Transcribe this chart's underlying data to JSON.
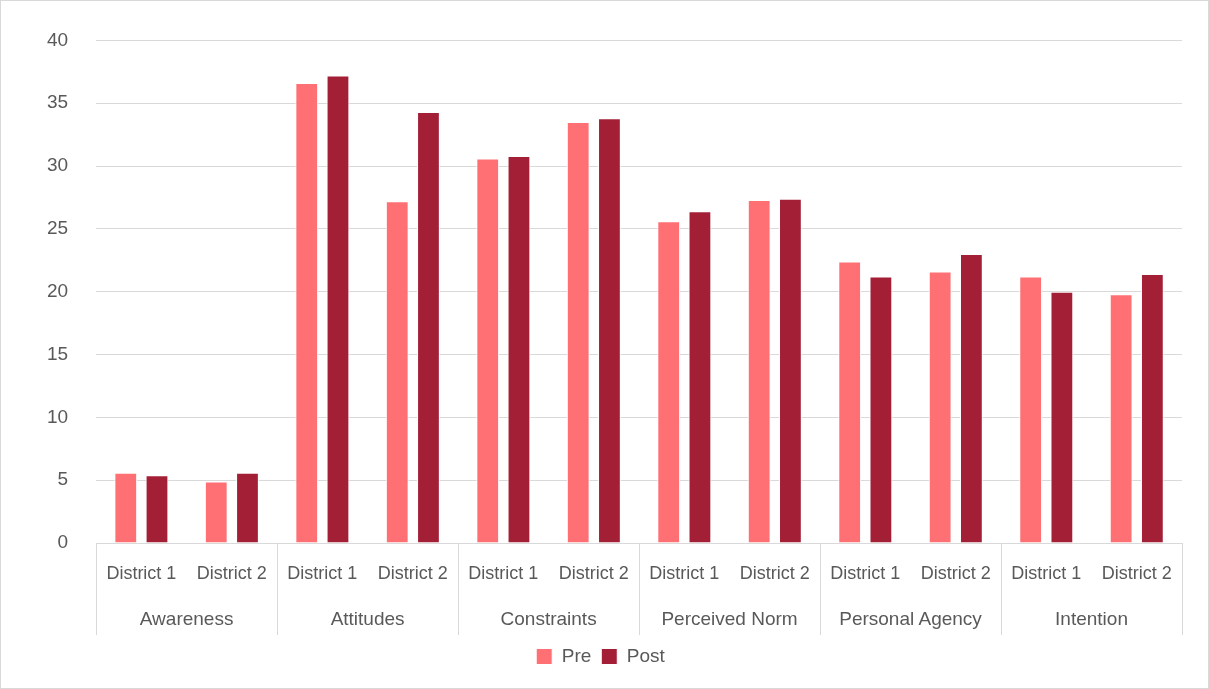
{
  "chart_data": {
    "type": "bar",
    "categories": [
      "District 1",
      "District 2",
      "District 1",
      "District 2",
      "District 1",
      "District 2",
      "District 1",
      "District 2",
      "District 1",
      "District 2",
      "District 1",
      "District 2"
    ],
    "annotations": [
      "Awareness",
      "Attitudes",
      "Constraints",
      "Perceived Norm",
      "Personal Agency",
      "Intention"
    ],
    "series": [
      {
        "name": "Pre",
        "color": "#ff7074",
        "values": [
          5.6,
          4.9,
          36.6,
          27.2,
          30.6,
          33.5,
          25.6,
          27.3,
          22.4,
          21.6,
          21.2,
          19.8
        ]
      },
      {
        "name": "Post",
        "color": "#a31f36",
        "values": [
          5.4,
          5.6,
          37.2,
          34.3,
          30.8,
          33.8,
          26.4,
          27.4,
          21.2,
          23.0,
          20.0,
          21.4
        ]
      }
    ],
    "ylim": [
      0,
      40
    ],
    "yticks": [
      0,
      5,
      10,
      15,
      20,
      25,
      30,
      35,
      40
    ],
    "grid": "y",
    "legend": "bottom"
  }
}
